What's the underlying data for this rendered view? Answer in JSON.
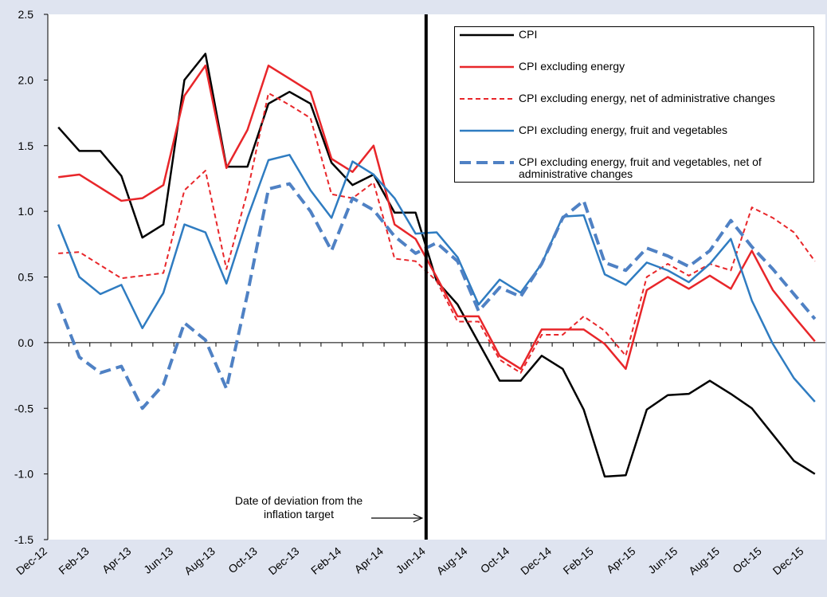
{
  "chart_data": {
    "type": "line",
    "categories": [
      "Dec-12",
      null,
      "Feb-13",
      null,
      "Apr-13",
      null,
      "Jun-13",
      null,
      "Aug-13",
      null,
      "Oct-13",
      null,
      "Dec-13",
      null,
      "Feb-14",
      null,
      "Apr-14",
      null,
      "Jun-14",
      null,
      "Aug-14",
      null,
      "Oct-14",
      null,
      "Dec-14",
      null,
      "Feb-15",
      null,
      "Apr-15",
      null,
      "Jun-15",
      null,
      "Aug-15",
      null,
      "Oct-15",
      null,
      "Dec-15"
    ],
    "series": [
      {
        "name": "CPI",
        "color": "#000000",
        "dash": "solid",
        "values": [
          1.64,
          1.46,
          1.46,
          1.27,
          0.8,
          0.9,
          2.0,
          2.2,
          1.34,
          1.34,
          1.82,
          1.91,
          1.82,
          1.37,
          1.2,
          1.28,
          0.99,
          0.99,
          0.47,
          0.29,
          0.0,
          -0.29,
          -0.29,
          -0.1,
          -0.2,
          -0.51,
          -1.02,
          -1.01,
          -0.51,
          -0.4,
          -0.39,
          -0.29,
          -0.39,
          -0.5,
          -0.7,
          -0.9,
          -1.0
        ]
      },
      {
        "name": "CPI excluding energy",
        "color": "#e8262a",
        "dash": "solid",
        "values": [
          1.26,
          1.28,
          1.18,
          1.08,
          1.1,
          1.2,
          1.88,
          2.11,
          1.33,
          1.62,
          2.11,
          2.01,
          1.91,
          1.4,
          1.3,
          1.5,
          0.9,
          0.79,
          0.5,
          0.2,
          0.2,
          -0.1,
          -0.2,
          0.1,
          0.1,
          0.1,
          -0.01,
          -0.2,
          0.4,
          0.5,
          0.41,
          0.51,
          0.41,
          0.7,
          0.4,
          0.2,
          0.01
        ]
      },
      {
        "name": "CPI excluding energy, net of administrative changes",
        "color": "#e8262a",
        "dash": "short",
        "values": [
          0.68,
          0.69,
          0.59,
          0.49,
          0.51,
          0.53,
          1.16,
          1.31,
          0.56,
          1.15,
          1.9,
          1.81,
          1.71,
          1.13,
          1.1,
          1.22,
          0.64,
          0.62,
          0.47,
          0.16,
          0.16,
          -0.13,
          -0.23,
          0.06,
          0.06,
          0.2,
          0.09,
          -0.1,
          0.5,
          0.6,
          0.51,
          0.6,
          0.55,
          1.03,
          0.95,
          0.84,
          0.62
        ]
      },
      {
        "name": "CPI excluding energy, fruit and vegetables",
        "color": "#2f7cc1",
        "dash": "solid",
        "values": [
          0.9,
          0.5,
          0.37,
          0.44,
          0.11,
          0.38,
          0.9,
          0.84,
          0.45,
          0.95,
          1.39,
          1.43,
          1.16,
          0.95,
          1.38,
          1.28,
          1.1,
          0.83,
          0.84,
          0.65,
          0.29,
          0.48,
          0.38,
          0.6,
          0.96,
          0.97,
          0.52,
          0.44,
          0.61,
          0.55,
          0.46,
          0.6,
          0.79,
          0.32,
          -0.01,
          -0.27,
          -0.45
        ]
      },
      {
        "name": "CPI excluding energy, fruit and vegetables, net of administrative changes",
        "color": "#4f81c4",
        "dash": "long",
        "values": [
          0.3,
          -0.11,
          -0.23,
          -0.18,
          -0.5,
          -0.32,
          0.15,
          0.02,
          -0.35,
          0.37,
          1.17,
          1.21,
          1.0,
          0.7,
          1.1,
          1.01,
          0.81,
          0.68,
          0.76,
          0.62,
          0.24,
          0.42,
          0.35,
          0.6,
          0.95,
          1.08,
          0.61,
          0.55,
          0.72,
          0.66,
          0.58,
          0.7,
          0.93,
          0.73,
          0.56,
          0.37,
          0.18
        ]
      }
    ],
    "ylim": [
      -1.5,
      2.5
    ],
    "yticks": [
      {
        "value": -1.5,
        "label": "-1.5"
      },
      {
        "value": -1.0,
        "label": "-1.0"
      },
      {
        "value": -0.5,
        "label": "-0.5"
      },
      {
        "value": 0,
        "label": "0.0"
      },
      {
        "value": 0.5,
        "label": "0.5"
      },
      {
        "value": 1.0,
        "label": "1.0"
      },
      {
        "value": 1.5,
        "label": "1.5"
      },
      {
        "value": 2.0,
        "label": "2.0"
      },
      {
        "value": 2.5,
        "label": "2.5"
      }
    ],
    "annotation": {
      "text": "Date of deviation from the inflation target",
      "x": "Jun-14"
    },
    "legend": "top-right"
  }
}
